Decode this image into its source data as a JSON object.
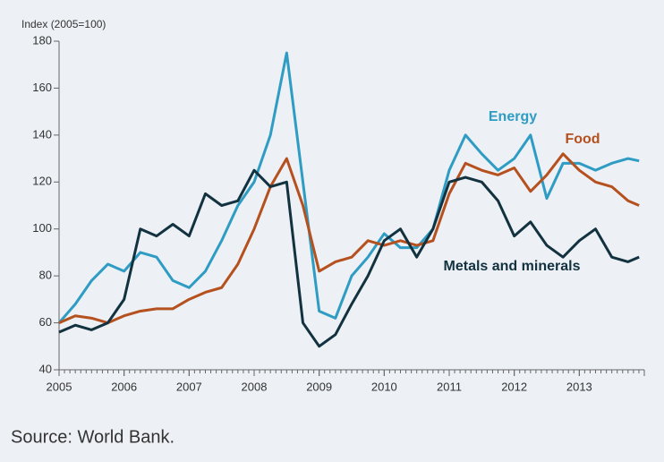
{
  "chart_data": {
    "type": "line",
    "y_axis_label": "Index (2005=100)",
    "source": "Source: World Bank.",
    "x": [
      2005,
      2005.25,
      2005.5,
      2005.75,
      2006,
      2006.25,
      2006.5,
      2006.75,
      2007,
      2007.25,
      2007.5,
      2007.75,
      2008,
      2008.25,
      2008.5,
      2008.75,
      2009,
      2009.25,
      2009.5,
      2009.75,
      2010,
      2010.25,
      2010.5,
      2010.75,
      2011,
      2011.25,
      2011.5,
      2011.75,
      2012,
      2012.25,
      2012.5,
      2012.75,
      2013,
      2013.25,
      2013.5,
      2013.75,
      2013.92
    ],
    "series": [
      {
        "name": "Energy",
        "color": "#2e9cc3",
        "values": [
          60,
          68,
          78,
          85,
          82,
          90,
          88,
          78,
          75,
          82,
          95,
          110,
          120,
          140,
          175,
          120,
          65,
          62,
          80,
          88,
          98,
          92,
          92,
          100,
          125,
          140,
          132,
          125,
          130,
          140,
          113,
          128,
          128,
          125,
          128,
          130,
          129
        ]
      },
      {
        "name": "Food",
        "color": "#b5501f",
        "values": [
          60,
          63,
          62,
          60,
          63,
          65,
          66,
          66,
          70,
          73,
          75,
          85,
          100,
          118,
          130,
          110,
          82,
          86,
          88,
          95,
          93,
          95,
          93,
          95,
          115,
          128,
          125,
          123,
          126,
          116,
          123,
          132,
          125,
          120,
          118,
          112,
          110
        ]
      },
      {
        "name": "Metals and minerals",
        "color": "#12323f",
        "values": [
          56,
          59,
          57,
          60,
          70,
          100,
          97,
          102,
          97,
          115,
          110,
          112,
          125,
          118,
          120,
          60,
          50,
          55,
          68,
          80,
          95,
          100,
          88,
          100,
          120,
          122,
          120,
          112,
          97,
          103,
          93,
          88,
          95,
          100,
          88,
          86,
          88
        ]
      }
    ],
    "xlim": [
      2005,
      2014
    ],
    "xticks": [
      2005,
      2006,
      2007,
      2008,
      2009,
      2010,
      2011,
      2012,
      2013
    ],
    "ylim": [
      40,
      180
    ],
    "yticks": [
      40,
      60,
      80,
      100,
      120,
      140,
      160,
      180
    ]
  }
}
